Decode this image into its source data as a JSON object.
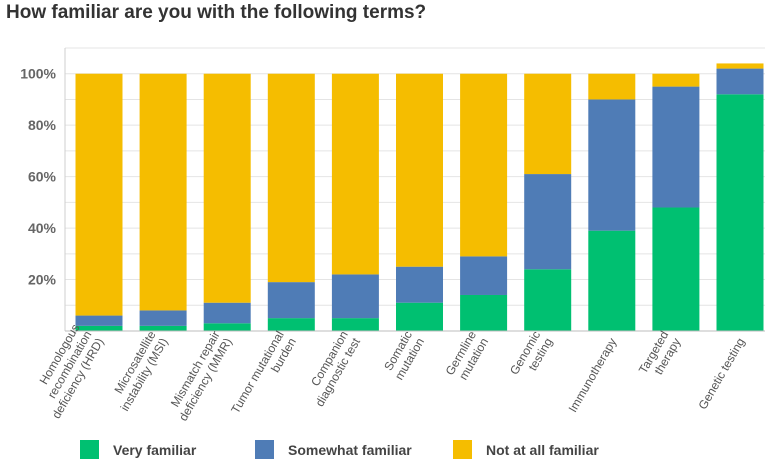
{
  "chart_data": {
    "type": "bar",
    "stacked": true,
    "title": "How familiar are you with the following terms?",
    "xlabel": "",
    "ylabel": "",
    "ylim": [
      0,
      110
    ],
    "yticks": [
      20,
      40,
      60,
      80,
      100
    ],
    "ytick_labels": [
      "20%",
      "40%",
      "60%",
      "80%",
      "100%"
    ],
    "grid": true,
    "legend": "bottom",
    "categories": [
      [
        "Homologous",
        "recombination",
        "deficiency (HRD)"
      ],
      [
        "Microsatellite",
        "instability (MSI)"
      ],
      [
        "Mismatch repair",
        "deficiency (MMR)"
      ],
      [
        "Tumor mutational",
        "burden"
      ],
      [
        "Companion",
        "diagnostic test"
      ],
      [
        "Somatic",
        "mutation"
      ],
      [
        "Germline",
        "mutation"
      ],
      [
        "Genomic",
        "testing"
      ],
      [
        "Immunotherapy"
      ],
      [
        "Targeted",
        "therapy"
      ],
      [
        "Genetic testing"
      ]
    ],
    "series": [
      {
        "name": "Very familiar",
        "color": "#00c071",
        "values": [
          2,
          2,
          3,
          5,
          5,
          11,
          14,
          24,
          39,
          48,
          92
        ]
      },
      {
        "name": "Somewhat familiar",
        "color": "#4f7cb6",
        "values": [
          4,
          6,
          8,
          14,
          17,
          14,
          15,
          37,
          51,
          47,
          10
        ]
      },
      {
        "name": "Not at all familiar",
        "color": "#f5bd00",
        "values": [
          94,
          92,
          89,
          81,
          78,
          75,
          71,
          39,
          10,
          5,
          2
        ]
      }
    ]
  }
}
